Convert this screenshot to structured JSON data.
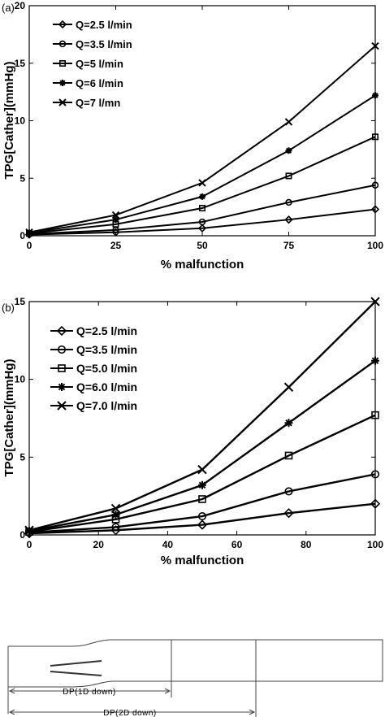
{
  "chart_data": [
    {
      "panel": "(a)",
      "type": "line",
      "x": [
        0,
        25,
        50,
        75,
        100
      ],
      "xticks": [
        "0",
        "25",
        "50",
        "75",
        "100"
      ],
      "xlim": [
        0,
        100
      ],
      "ylim": [
        0,
        20
      ],
      "yticks": [
        "0",
        "5",
        "10",
        "15",
        "20"
      ],
      "xlabel": "% malfunction",
      "ylabel": "TPG[Cather](mmHg)",
      "legend_position": "top-left",
      "grid": false,
      "series": [
        {
          "name": "Q=2.5 l/min",
          "marker": "diamond",
          "values": [
            0.1,
            0.3,
            0.65,
            1.4,
            2.3
          ]
        },
        {
          "name": "Q=3.5 l/min",
          "marker": "circle",
          "values": [
            0.15,
            0.5,
            1.2,
            2.9,
            4.4
          ]
        },
        {
          "name": "Q=5 l/min",
          "marker": "square",
          "values": [
            0.2,
            1.0,
            2.4,
            5.2,
            8.6
          ]
        },
        {
          "name": "Q=6 l/min",
          "marker": "star",
          "values": [
            0.25,
            1.4,
            3.4,
            7.4,
            12.2
          ]
        },
        {
          "name": "Q=7 l/mn",
          "marker": "x",
          "values": [
            0.3,
            1.8,
            4.6,
            9.9,
            16.5
          ]
        }
      ]
    },
    {
      "panel": "(b)",
      "type": "line",
      "x": [
        0,
        25,
        50,
        75,
        100
      ],
      "xticks": [
        "0",
        "20",
        "40",
        "60",
        "80",
        "100"
      ],
      "xlim": [
        0,
        100
      ],
      "ylim": [
        0,
        15
      ],
      "yticks": [
        "0",
        "5",
        "10",
        "15"
      ],
      "xlabel": "% malfunction",
      "ylabel": "TPG[Cather](mmHg)",
      "legend_position": "top-left",
      "grid": false,
      "series": [
        {
          "name": "Q=2.5 l/min",
          "marker": "diamond",
          "values": [
            0.1,
            0.3,
            0.65,
            1.4,
            2.0
          ]
        },
        {
          "name": "Q=3.5 l/min",
          "marker": "circle",
          "values": [
            0.15,
            0.5,
            1.2,
            2.8,
            3.9
          ]
        },
        {
          "name": "Q=5.0 l/min",
          "marker": "square",
          "values": [
            0.2,
            1.0,
            2.3,
            5.1,
            7.7
          ]
        },
        {
          "name": "Q=6.0 l/min",
          "marker": "star",
          "values": [
            0.25,
            1.3,
            3.2,
            7.2,
            11.2
          ]
        },
        {
          "name": "Q=7.0 l/min",
          "marker": "x",
          "values": [
            0.3,
            1.7,
            4.2,
            9.5,
            15.0
          ]
        }
      ]
    }
  ],
  "diagram": {
    "label_1d": "DP(1D down)",
    "label_2d": "DP(2D down)"
  }
}
